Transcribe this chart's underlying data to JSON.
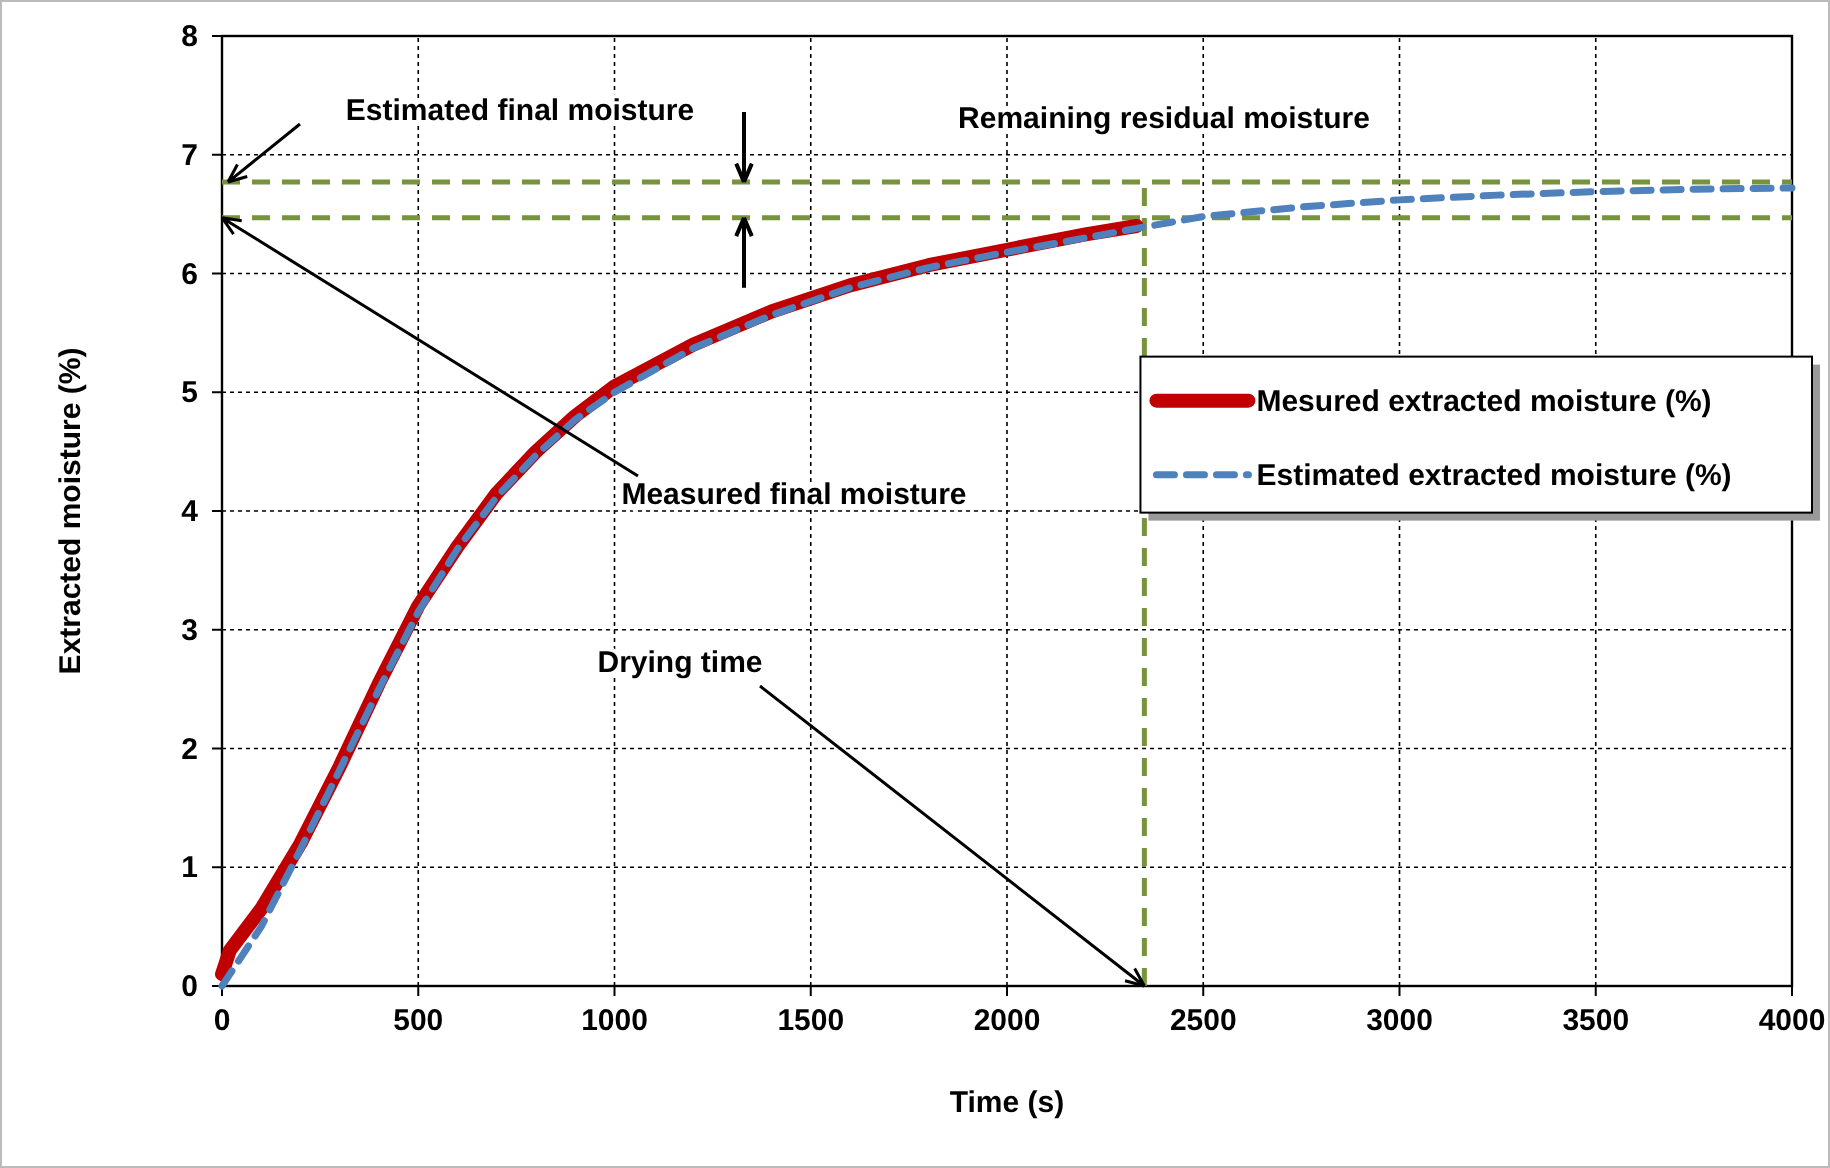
{
  "chart_data": {
    "type": "line",
    "xlabel": "Time (s)",
    "ylabel": "Extracted moisture (%)",
    "xlim": [
      0,
      4000
    ],
    "xticks": [
      0,
      500,
      1000,
      1500,
      2000,
      2500,
      3000,
      3500,
      4000
    ],
    "ylim": [
      0,
      8
    ],
    "yticks": [
      0,
      1,
      2,
      3,
      4,
      5,
      6,
      7,
      8
    ],
    "grid": true,
    "legend": "right",
    "series": [
      {
        "name": "Mesured extracted moisture (%)",
        "color": "#c00000",
        "line_style": "solid",
        "x": [
          0,
          20,
          100,
          200,
          300,
          400,
          500,
          600,
          700,
          800,
          900,
          1000,
          1200,
          1400,
          1600,
          1800,
          2000,
          2200,
          2330
        ],
        "values": [
          0.1,
          0.3,
          0.65,
          1.2,
          1.85,
          2.55,
          3.2,
          3.7,
          4.15,
          4.5,
          4.8,
          5.05,
          5.4,
          5.68,
          5.9,
          6.07,
          6.2,
          6.33,
          6.4
        ]
      },
      {
        "name": "Estimated extracted moisture (%)",
        "color": "#4f81bd",
        "line_style": "dashed",
        "x": [
          0,
          100,
          200,
          300,
          400,
          500,
          600,
          700,
          800,
          900,
          1000,
          1200,
          1400,
          1600,
          1800,
          2000,
          2200,
          2330,
          2500,
          2750,
          3000,
          3250,
          3500,
          3750,
          4000
        ],
        "values": [
          0,
          0.5,
          1.15,
          1.82,
          2.5,
          3.15,
          3.68,
          4.12,
          4.47,
          4.77,
          5.0,
          5.37,
          5.65,
          5.88,
          6.05,
          6.18,
          6.3,
          6.38,
          6.48,
          6.56,
          6.62,
          6.66,
          6.69,
          6.71,
          6.72
        ]
      }
    ],
    "ref_lines": [
      {
        "axis": "y",
        "value": 6.77,
        "label": null,
        "color": "#77933c",
        "line_style": "dashed"
      },
      {
        "axis": "y",
        "value": 6.47,
        "label": null,
        "color": "#77933c",
        "line_style": "dashed"
      },
      {
        "axis": "x",
        "value": 2350,
        "label": null,
        "color": "#77933c",
        "line_style": "dashed"
      }
    ],
    "annotations": [
      "Estimated final moisture",
      "Remaining residual moisture",
      {
        "text": "Measured final moisture",
        "x": 0,
        "y": 6.47
      },
      {
        "text": "Drying time",
        "x": 2350,
        "y": 0
      }
    ]
  }
}
